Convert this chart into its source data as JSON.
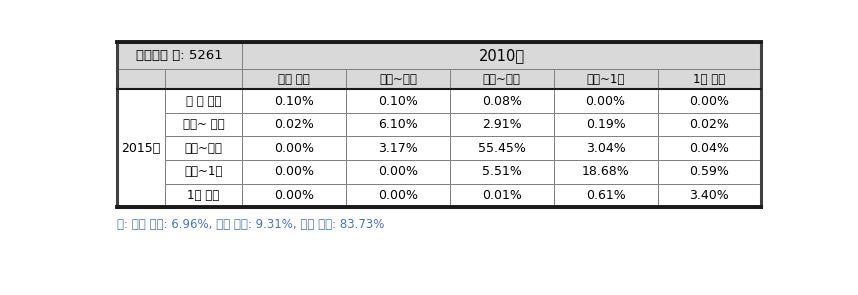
{
  "title_left": "전체기업 수: 5261",
  "col_header_main": "2010년",
  "col_headers": [
    "십억 미만",
    "십억~백억",
    "백억~천억",
    "천억~1조",
    "1조 이상"
  ],
  "row_header_main": "2015년",
  "row_headers": [
    "십 억 미만",
    "십억~ 백억",
    "백억~천억",
    "천억~1조",
    "1조 이상"
  ],
  "data": [
    [
      "0.10%",
      "0.10%",
      "0.08%",
      "0.00%",
      "0.00%"
    ],
    [
      "0.02%",
      "6.10%",
      "2.91%",
      "0.19%",
      "0.02%"
    ],
    [
      "0.00%",
      "3.17%",
      "55.45%",
      "3.04%",
      "0.04%"
    ],
    [
      "0.00%",
      "0.00%",
      "5.51%",
      "18.68%",
      "0.59%"
    ],
    [
      "0.00%",
      "0.00%",
      "0.01%",
      "0.61%",
      "3.40%"
    ]
  ],
  "footnote": "주: 하위 이동: 6.96%, 상위 이동: 9.31%, 변동 없음: 83.73%",
  "header_bg": "#d9d9d9",
  "cell_bg": "#ffffff",
  "border_color": "#808080",
  "footnote_color": "#4472c4",
  "outer_border_color": "#404040",
  "thick_border_color": "#1a1a1a"
}
